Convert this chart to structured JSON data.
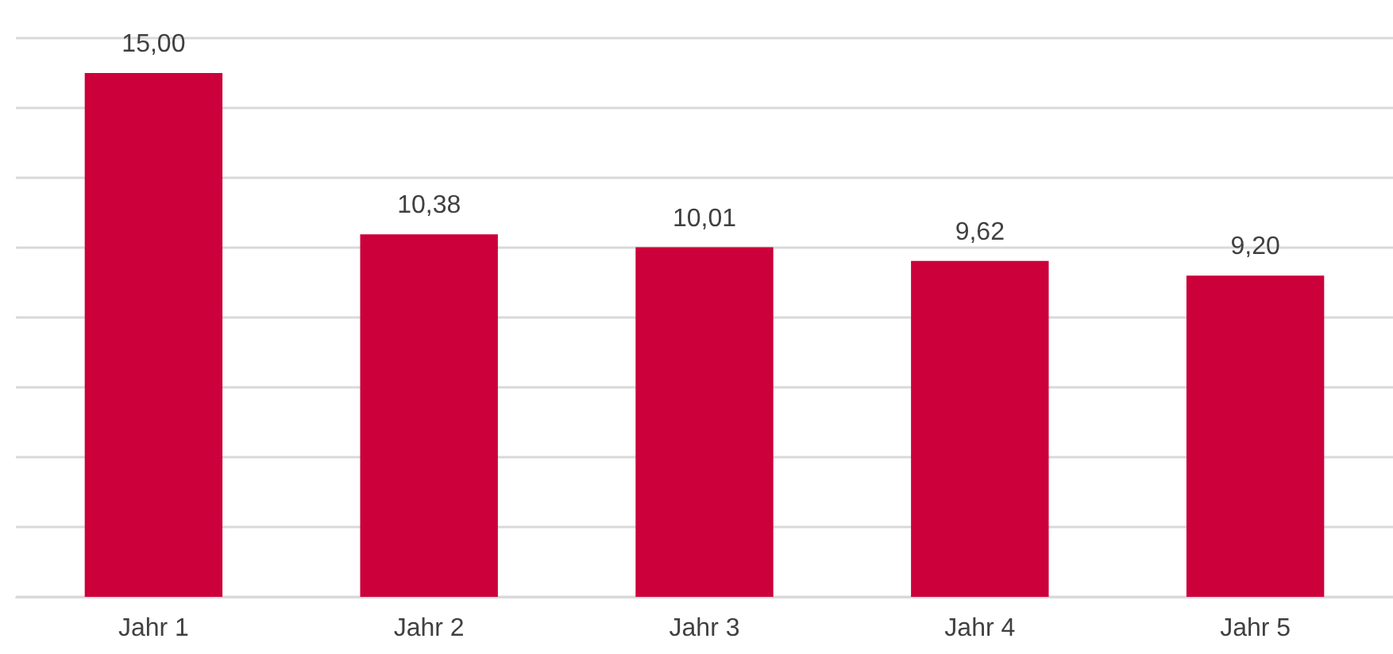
{
  "chart_data": {
    "type": "bar",
    "categories": [
      "Jahr 1",
      "Jahr 2",
      "Jahr 3",
      "Jahr 4",
      "Jahr 5"
    ],
    "values": [
      15.0,
      10.38,
      10.01,
      9.62,
      9.2
    ],
    "value_labels": [
      "15,00",
      "10,38",
      "10,01",
      "9,62",
      "9,20"
    ],
    "color": "#cc003a",
    "ylim": [
      0,
      16
    ],
    "yticks": [
      {
        "value": 0,
        "label": null
      },
      {
        "value": 2,
        "label": null
      },
      {
        "value": 4,
        "label": null
      },
      {
        "value": 6,
        "label": null
      },
      {
        "value": 8,
        "label": null
      },
      {
        "value": 10,
        "label": null
      },
      {
        "value": 12,
        "label": null
      },
      {
        "value": 14,
        "label": null
      },
      {
        "value": 16,
        "label": null
      }
    ],
    "grid": "y",
    "tick_labels": "x"
  }
}
